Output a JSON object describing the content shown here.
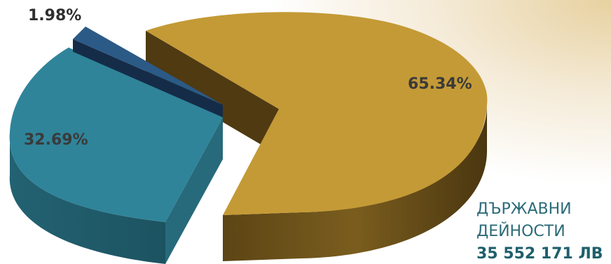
{
  "chart_data": {
    "type": "pie",
    "style": "3d-exploded",
    "slices": [
      {
        "label": "65.34%",
        "value": 65.34,
        "color": "#c49a36"
      },
      {
        "label": "32.69%",
        "value": 32.69,
        "color": "#2f8499"
      },
      {
        "label": "1.98%",
        "value": 1.98,
        "color": "#2b5a86"
      }
    ],
    "annotation": {
      "line1": "ДЪРЖАВНИ",
      "line2": "ДЕЙНОСТИ",
      "amount": "35 552 171 ЛВ",
      "color": "#2b6b78"
    }
  }
}
